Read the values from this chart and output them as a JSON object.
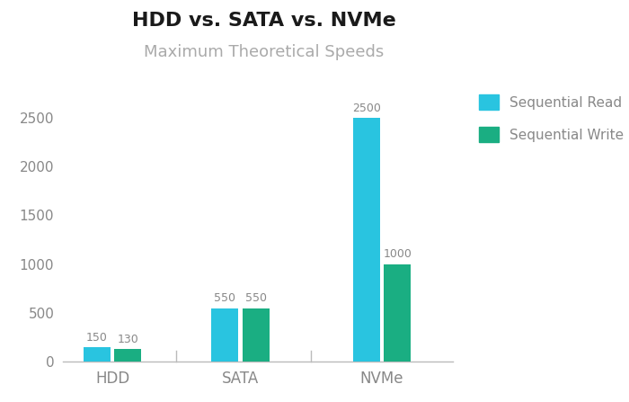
{
  "title": "HDD vs. SATA vs. NVMe",
  "subtitle": "Maximum Theoretical Speeds",
  "categories": [
    "HDD",
    "SATA",
    "NVMe"
  ],
  "sequential_read": [
    150,
    550,
    2500
  ],
  "sequential_write": [
    130,
    550,
    1000
  ],
  "read_color": "#29C4E0",
  "write_color": "#1AAE82",
  "label_color": "#888888",
  "title_color": "#1a1a1a",
  "subtitle_color": "#aaaaaa",
  "bar_width": 0.38,
  "ylim": [
    0,
    2800
  ],
  "yticks": [
    0,
    500,
    1000,
    1500,
    2000,
    2500
  ],
  "legend_labels": [
    "Sequential Read",
    "Sequential Write"
  ],
  "background_color": "#ffffff",
  "divider_color": "#bbbbbb",
  "value_label_color": "#888888",
  "value_label_fontsize": 9,
  "xtick_fontsize": 12,
  "ytick_fontsize": 11,
  "title_fontsize": 16,
  "subtitle_fontsize": 13,
  "legend_fontsize": 11
}
